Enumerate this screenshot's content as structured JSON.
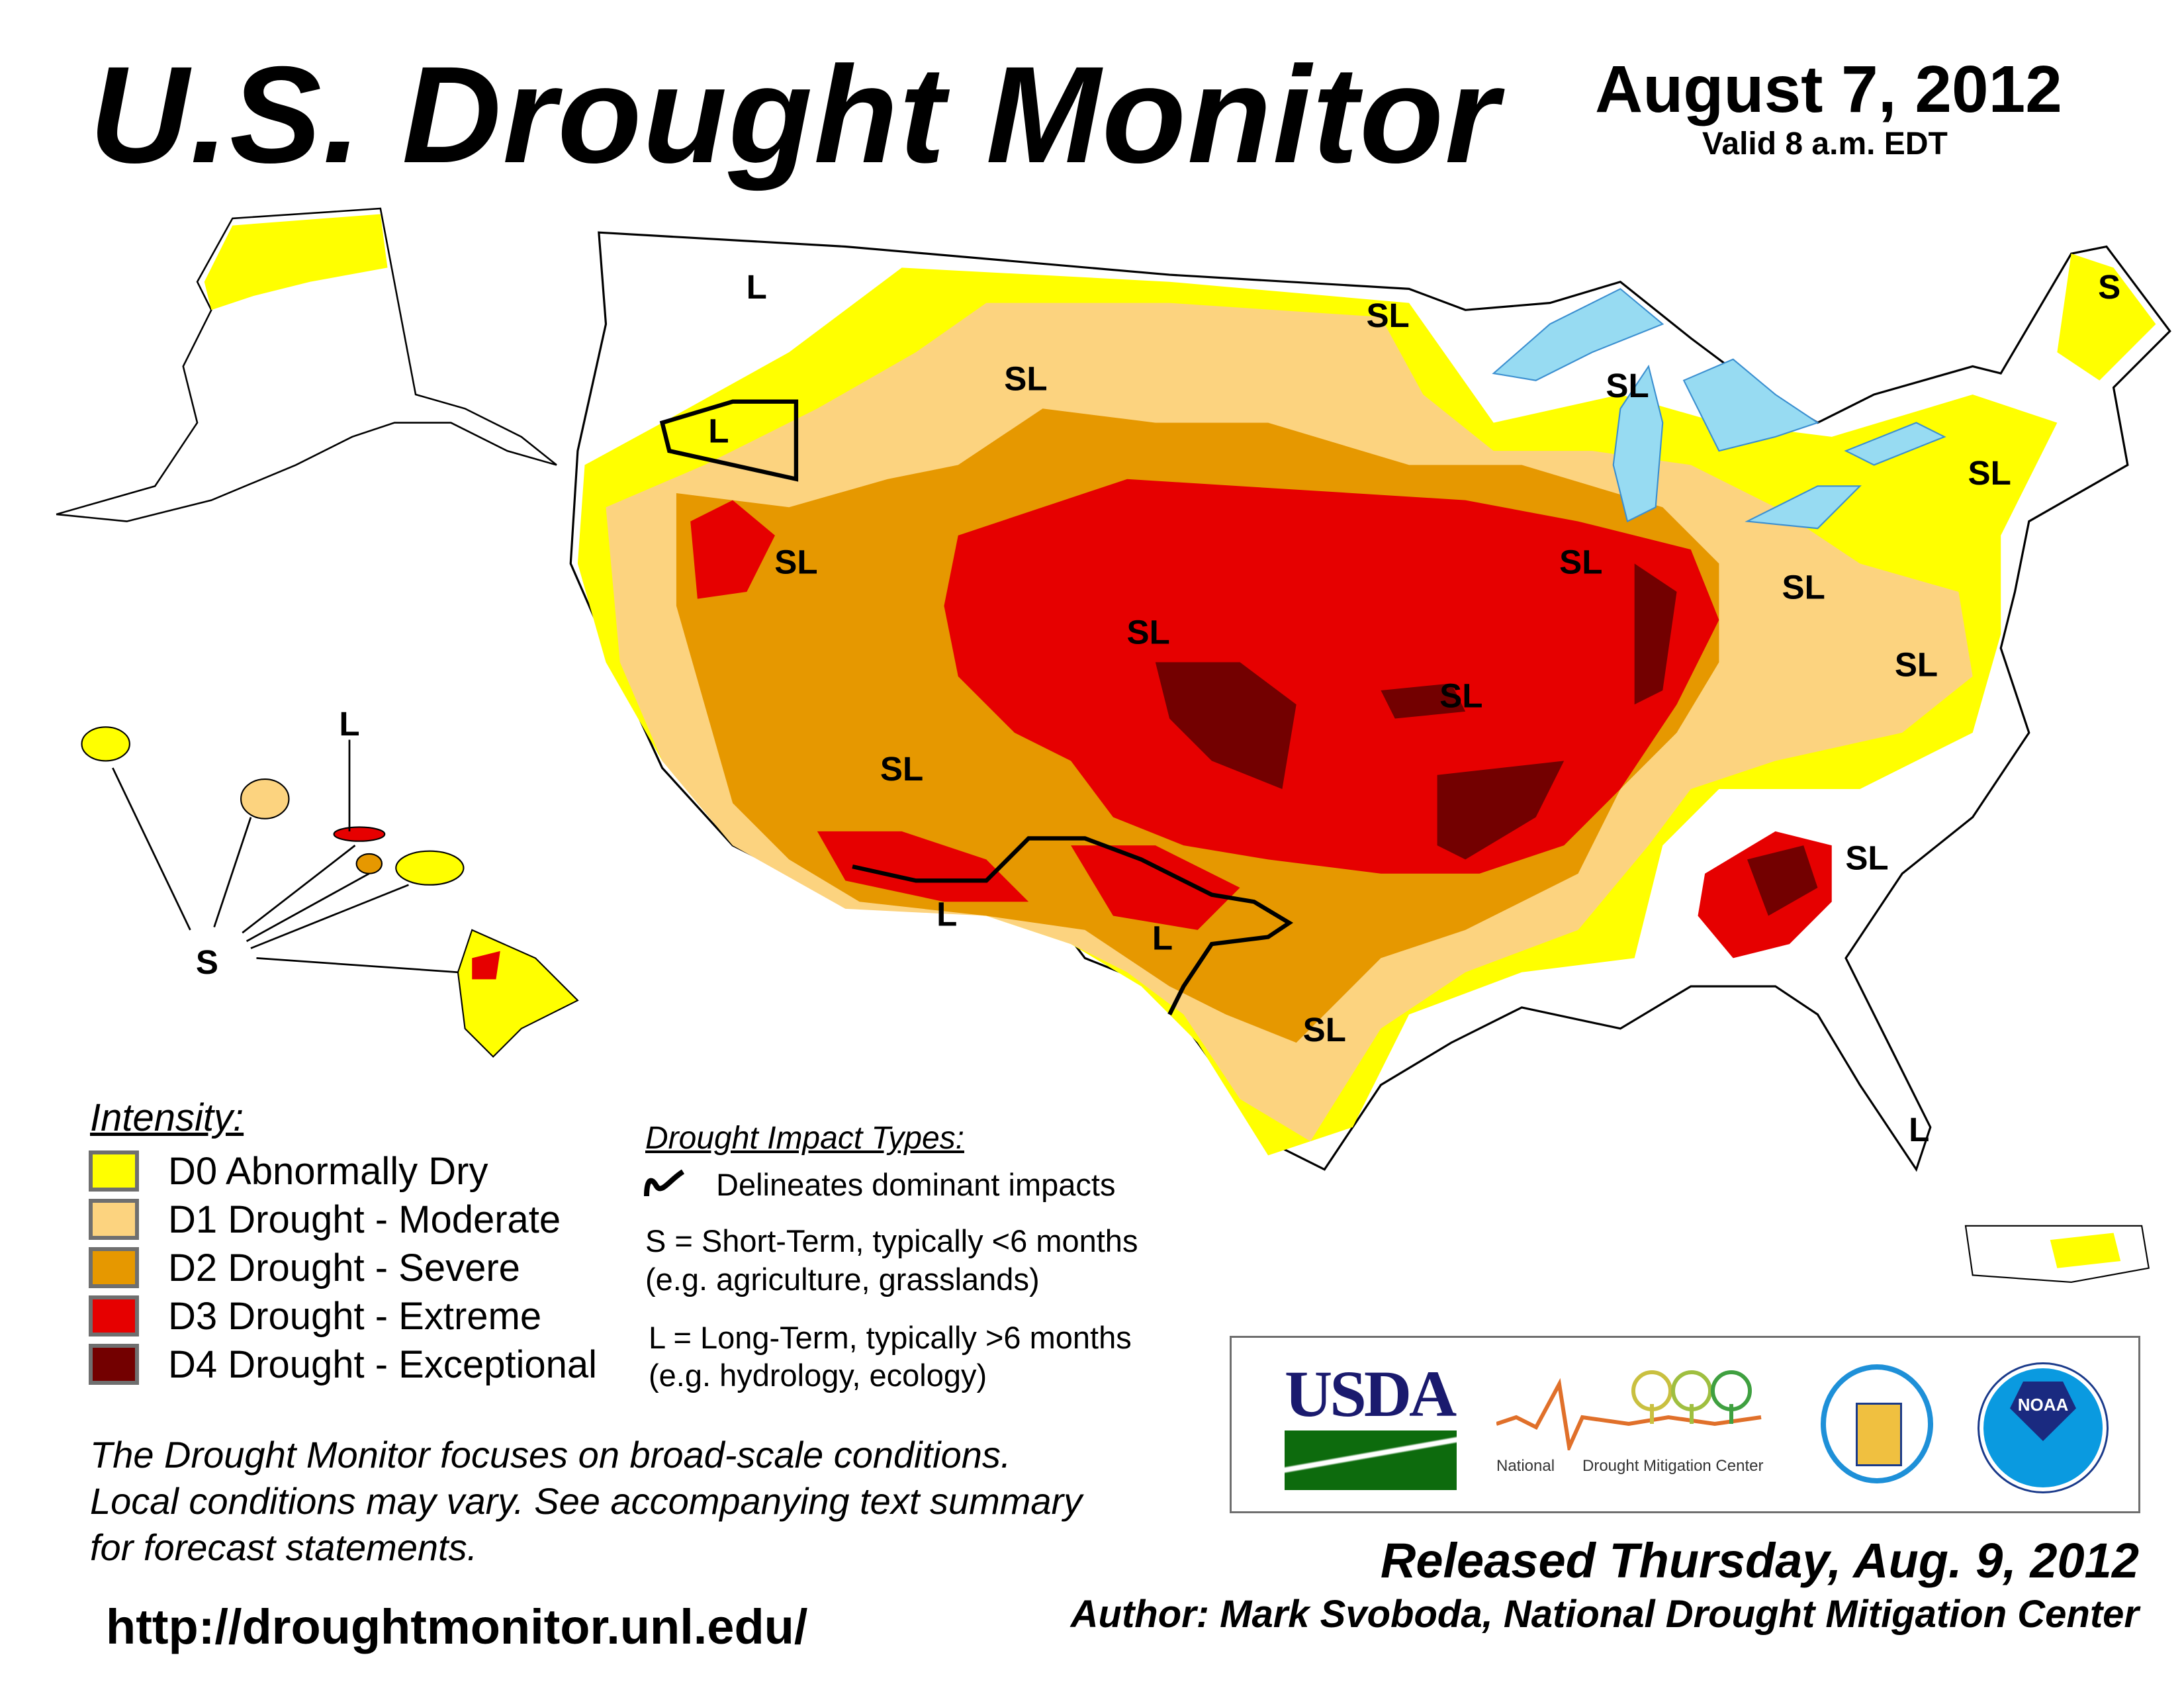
{
  "header": {
    "title": "U.S. Drought Monitor",
    "date": "August 7, 2012",
    "valid": "Valid 8 a.m. EDT"
  },
  "legend": {
    "title": "Intensity:",
    "items": [
      {
        "label": "D0 Abnormally Dry",
        "color": "#ffff00"
      },
      {
        "label": "D1 Drought - Moderate",
        "color": "#fcd37f"
      },
      {
        "label": "D2 Drought - Severe",
        "color": "#e69800"
      },
      {
        "label": "D3 Drought - Extreme",
        "color": "#e60000"
      },
      {
        "label": "D4 Drought - Exceptional",
        "color": "#730000"
      }
    ]
  },
  "impacts": {
    "title": "Drought Impact Types:",
    "delineates": "Delineates dominant impacts",
    "short_term": "S = Short-Term, typically <6 months",
    "short_examples": "(e.g. agriculture, grasslands)",
    "long_term": "L = Long-Term, typically >6 months",
    "long_examples": "(e.g. hydrology, ecology)"
  },
  "map_labels": [
    "L",
    "SL",
    "SL",
    "SL",
    "S",
    "L",
    "SL",
    "SL",
    "SL",
    "SL",
    "SL",
    "SL",
    "SL",
    "SL",
    "SL",
    "L",
    "L",
    "SL",
    "L",
    "L",
    "S"
  ],
  "disclaimer": [
    "The Drought Monitor focuses on broad-scale conditions.",
    "Local conditions may vary. See accompanying text summary",
    "for forecast statements."
  ],
  "url": "http://droughtmonitor.unl.edu/",
  "logos": {
    "usda": "USDA",
    "ndmc_left": "National",
    "ndmc_right": "Drought Mitigation Center",
    "noaa": "NOAA"
  },
  "released": "Released Thursday, Aug. 9, 2012",
  "author": "Author: Mark Svoboda, National Drought Mitigation Center"
}
